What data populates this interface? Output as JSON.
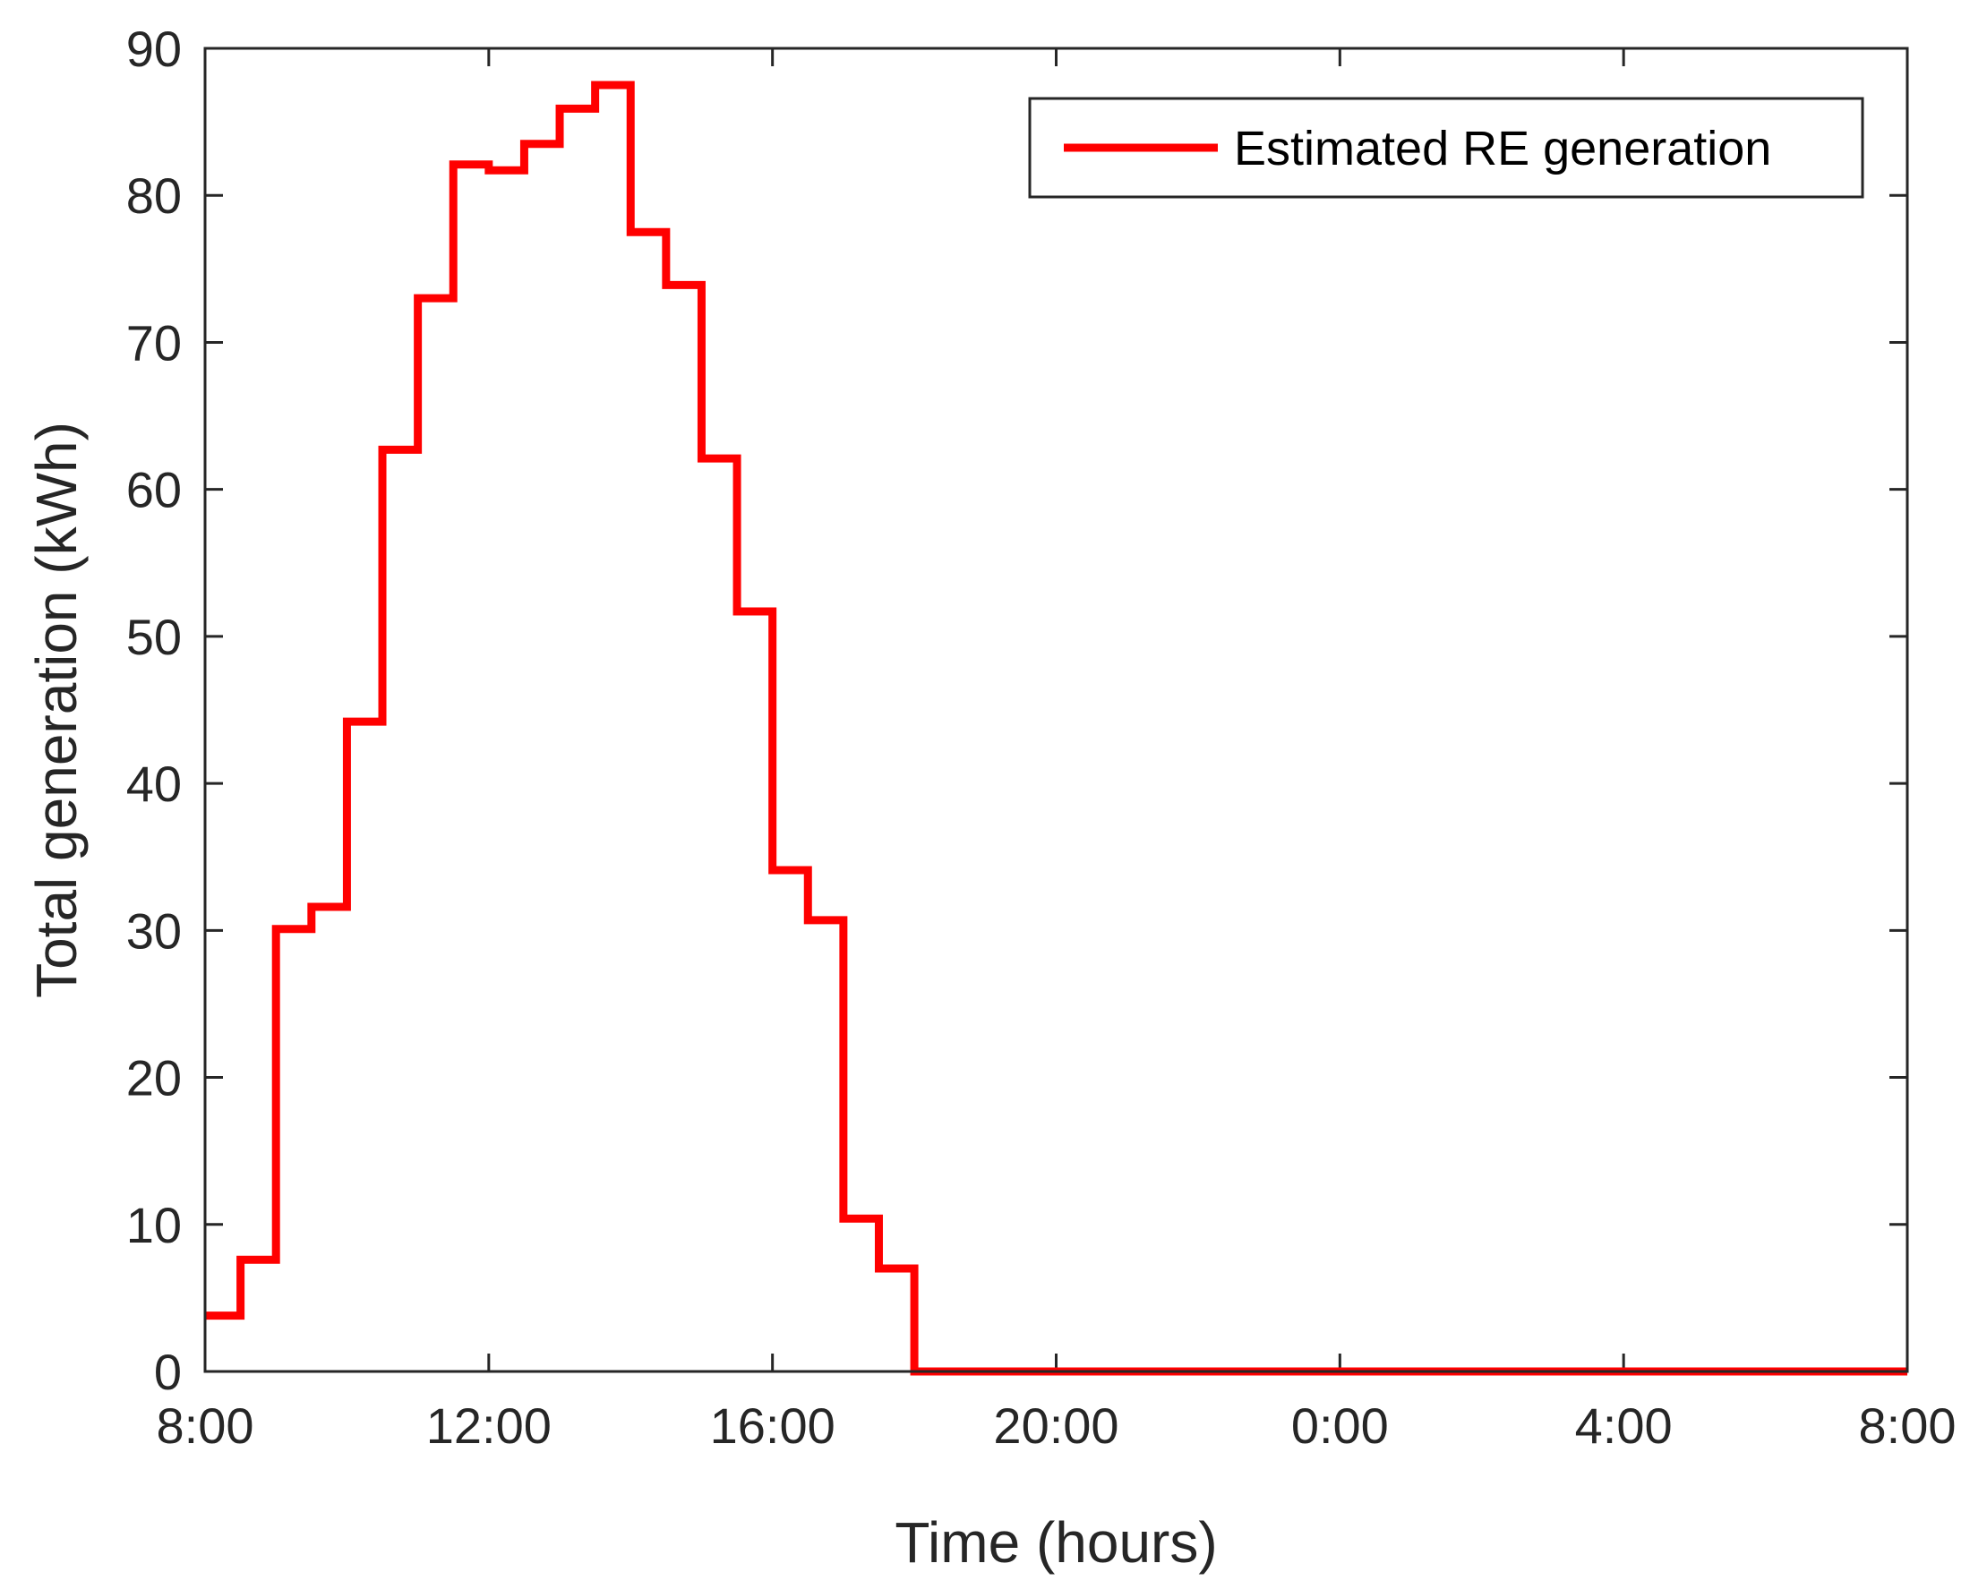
{
  "chart_data": {
    "type": "line",
    "step": "post",
    "title": "",
    "xlabel": "Time (hours)",
    "ylabel": "Total generation (kWh)",
    "xlim": [
      8,
      32
    ],
    "ylim": [
      0,
      90
    ],
    "x_ticks": [
      {
        "value": 8,
        "label": "8:00"
      },
      {
        "value": 12,
        "label": "12:00"
      },
      {
        "value": 16,
        "label": "16:00"
      },
      {
        "value": 20,
        "label": "20:00"
      },
      {
        "value": 24,
        "label": "0:00"
      },
      {
        "value": 28,
        "label": "4:00"
      },
      {
        "value": 32,
        "label": "8:00"
      }
    ],
    "y_ticks": [
      0,
      10,
      20,
      30,
      40,
      50,
      60,
      70,
      80,
      90
    ],
    "grid": false,
    "legend_position": "top-right",
    "series": [
      {
        "name": "Estimated RE generation",
        "color": "#ff0000",
        "x": [
          8.0,
          8.5,
          9.0,
          9.5,
          10.0,
          10.5,
          11.0,
          11.5,
          12.0,
          12.5,
          13.0,
          13.5,
          14.0,
          14.5,
          15.0,
          15.5,
          16.0,
          16.5,
          17.0,
          17.5,
          18.0,
          18.5,
          19.0,
          19.5,
          20.0,
          20.5,
          21.0,
          21.5,
          22.0,
          22.5,
          23.0,
          23.5,
          24.0,
          24.5,
          25.0,
          25.5,
          26.0,
          26.5,
          27.0,
          27.5,
          28.0,
          28.5,
          29.0,
          29.5,
          30.0,
          30.5,
          31.0,
          31.5
        ],
        "y": [
          3.8,
          7.6,
          30.1,
          31.6,
          44.2,
          62.7,
          73.0,
          82.1,
          81.7,
          83.5,
          85.9,
          87.5,
          77.5,
          73.9,
          62.1,
          51.7,
          34.1,
          30.7,
          10.4,
          7.0,
          0,
          0,
          0,
          0,
          0,
          0,
          0,
          0,
          0,
          0,
          0,
          0,
          0,
          0,
          0,
          0,
          0,
          0,
          0,
          0,
          0,
          0,
          0,
          0,
          0,
          0,
          0,
          0
        ]
      }
    ]
  }
}
